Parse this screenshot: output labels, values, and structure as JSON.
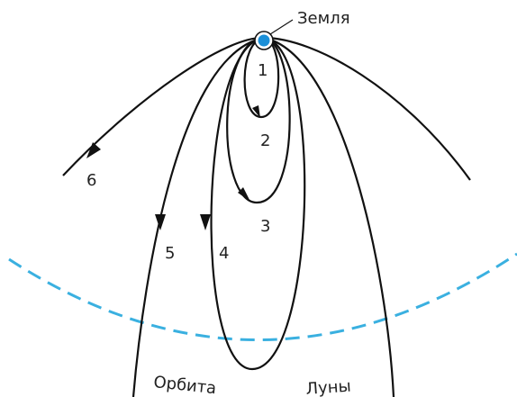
{
  "earth": "Земля",
  "trajectories": [
    "1",
    "2",
    "3",
    "4",
    "5",
    "6"
  ],
  "orbit": [
    "Орбита",
    "Луны"
  ]
}
